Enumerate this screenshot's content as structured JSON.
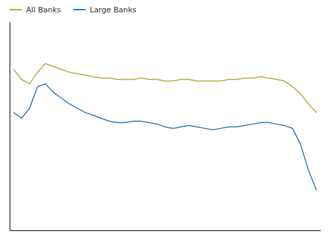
{
  "chart_data": {
    "type": "line",
    "x": [
      0,
      1,
      2,
      3,
      4,
      5,
      6,
      7,
      8,
      9,
      10,
      11,
      12,
      13,
      14,
      15,
      16,
      17,
      18,
      19,
      20,
      21,
      22,
      23,
      24,
      25,
      26,
      27,
      28,
      29,
      30,
      31,
      32,
      33,
      34,
      35,
      36,
      37,
      38
    ],
    "series": [
      {
        "name": "All Banks",
        "color": "#b5a642",
        "values": [
          3.52,
          3.45,
          3.42,
          3.5,
          3.56,
          3.54,
          3.52,
          3.5,
          3.49,
          3.48,
          3.47,
          3.46,
          3.46,
          3.45,
          3.45,
          3.45,
          3.46,
          3.45,
          3.45,
          3.44,
          3.44,
          3.45,
          3.45,
          3.44,
          3.44,
          3.44,
          3.44,
          3.45,
          3.45,
          3.46,
          3.46,
          3.47,
          3.46,
          3.45,
          3.44,
          3.4,
          3.35,
          3.28,
          3.22
        ]
      },
      {
        "name": "Large Banks",
        "color": "#2e78b0",
        "values": [
          3.22,
          3.18,
          3.25,
          3.4,
          3.42,
          3.36,
          3.32,
          3.28,
          3.25,
          3.22,
          3.2,
          3.18,
          3.16,
          3.15,
          3.15,
          3.16,
          3.16,
          3.15,
          3.14,
          3.12,
          3.11,
          3.12,
          3.13,
          3.12,
          3.11,
          3.1,
          3.11,
          3.12,
          3.12,
          3.13,
          3.14,
          3.15,
          3.15,
          3.14,
          3.13,
          3.11,
          3.0,
          2.82,
          2.68
        ]
      }
    ],
    "xlim": [
      -0.5,
      38.5
    ],
    "ylim": [
      2.4,
      3.85
    ],
    "tick_labels": false,
    "grid": false,
    "legend": "upper left"
  }
}
